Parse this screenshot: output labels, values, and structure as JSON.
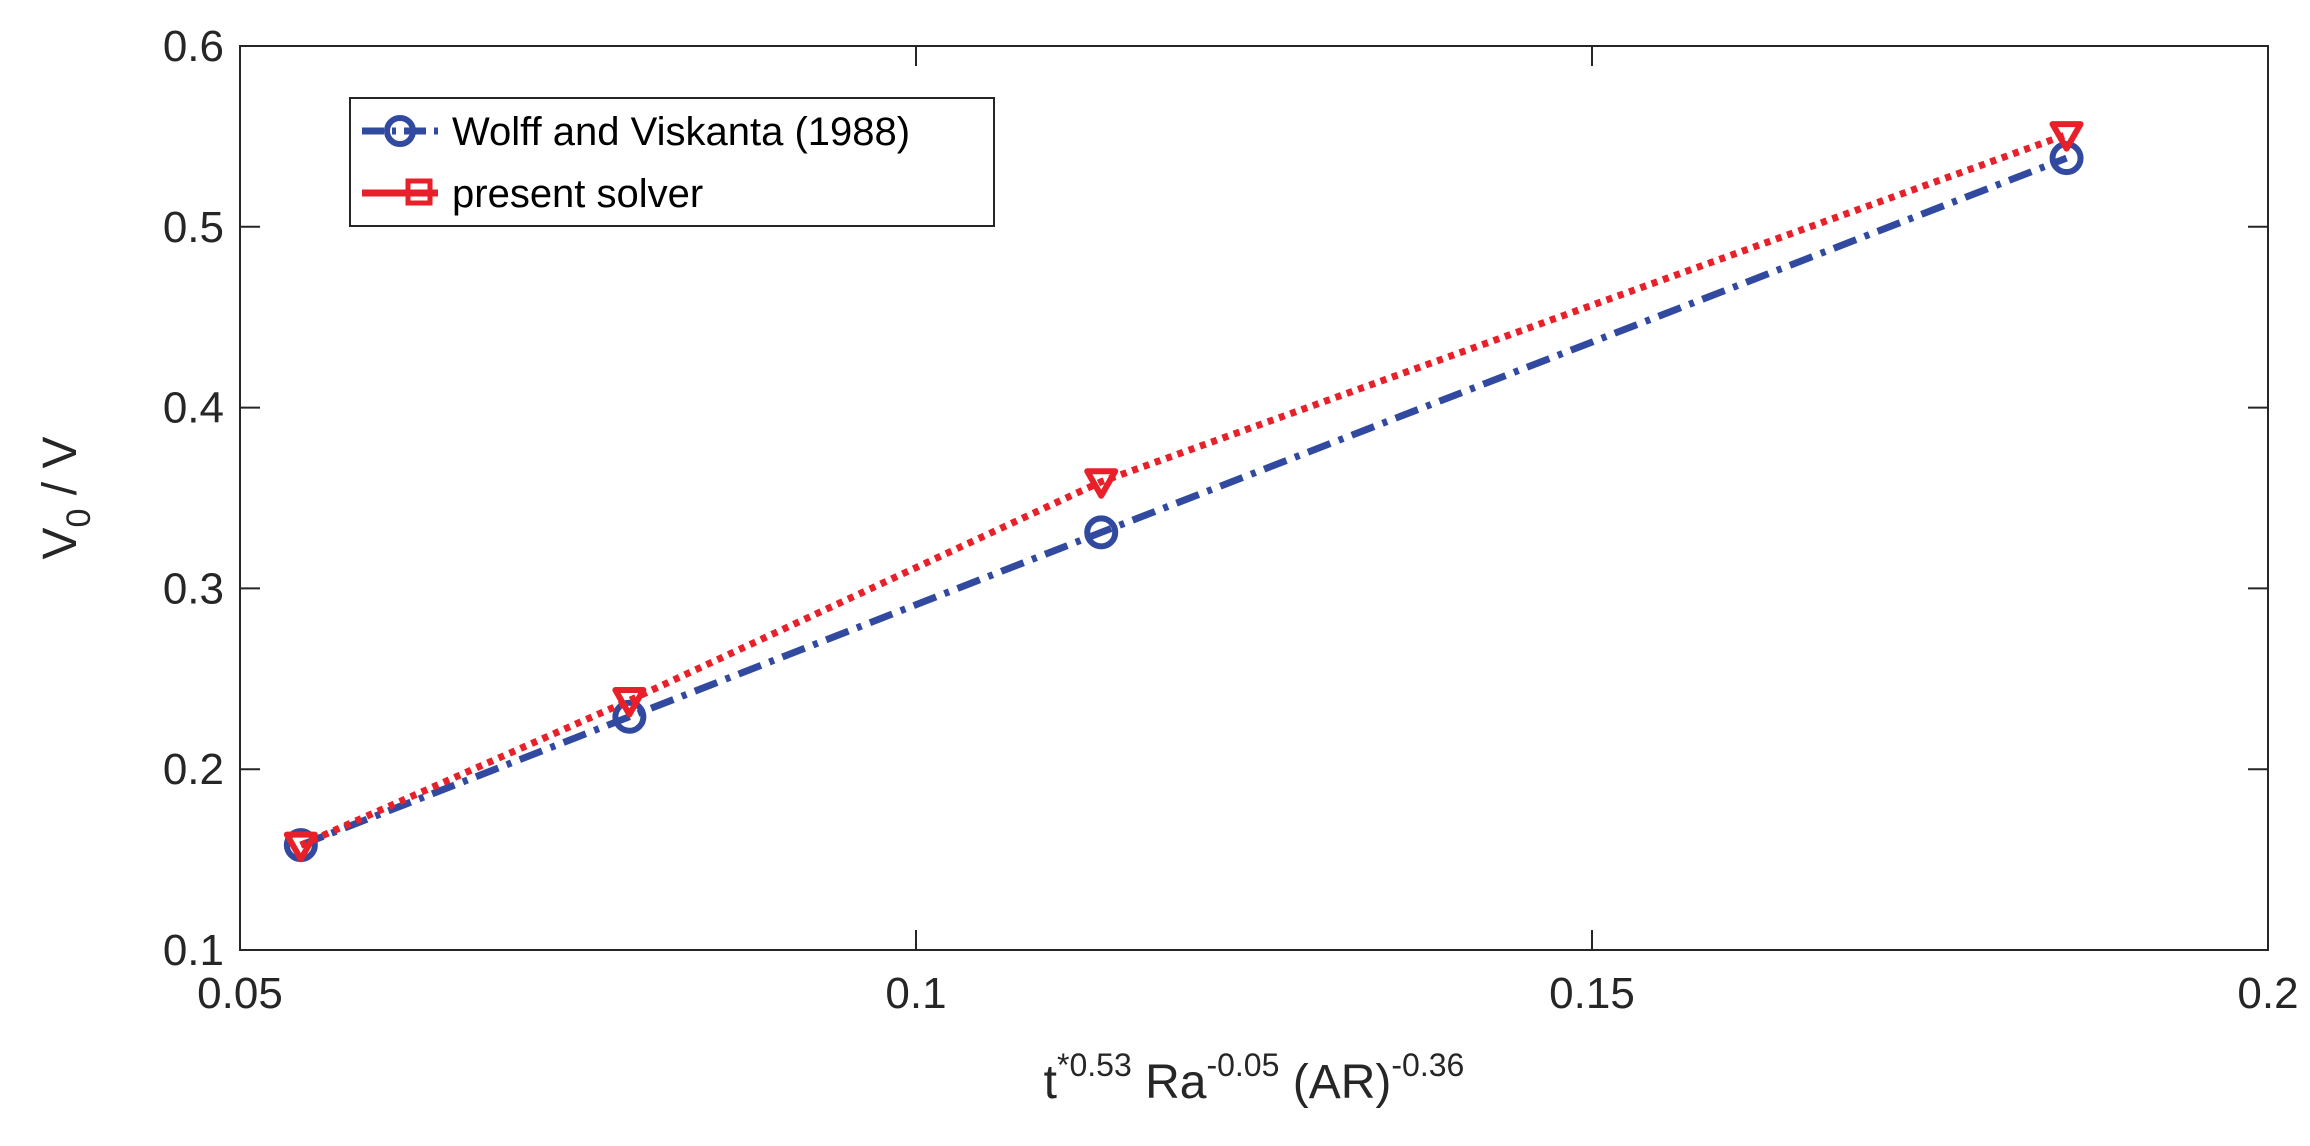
{
  "chart_data": {
    "type": "line",
    "xlabel": {
      "base1": "t",
      "sup1": "*0.53",
      "base2": " Ra",
      "sup2": "-0.05",
      "base3": " (AR)",
      "sup3": "-0.36"
    },
    "ylabel": {
      "base1": "V",
      "sub1": "0",
      "base2": " / V"
    },
    "xlim": [
      0.05,
      0.2
    ],
    "ylim": [
      0.1,
      0.6
    ],
    "xticks": [
      0.05,
      0.1,
      0.15,
      0.2
    ],
    "xtick_labels": [
      "0.05",
      "0.1",
      "0.15",
      "0.2"
    ],
    "yticks": [
      0.1,
      0.2,
      0.3,
      0.4,
      0.5,
      0.6
    ],
    "ytick_labels": [
      "0.1",
      "0.2",
      "0.3",
      "0.4",
      "0.5",
      "0.6"
    ],
    "grid": false,
    "legend_position": "top-left",
    "series": [
      {
        "name": "Wolff and Viskanta (1988)",
        "color": "#3249a0",
        "line_style": "dash-dot",
        "marker": "circle",
        "x": [
          0.0545,
          0.0788,
          0.1137,
          0.1851
        ],
        "y": [
          0.158,
          0.229,
          0.331,
          0.538
        ]
      },
      {
        "name": "present solver",
        "color": "#e8202a",
        "line_style": "dotted",
        "marker": "triangle-down",
        "x": [
          0.0545,
          0.0788,
          0.1137,
          0.1851
        ],
        "y": [
          0.158,
          0.238,
          0.359,
          0.551
        ]
      }
    ]
  }
}
